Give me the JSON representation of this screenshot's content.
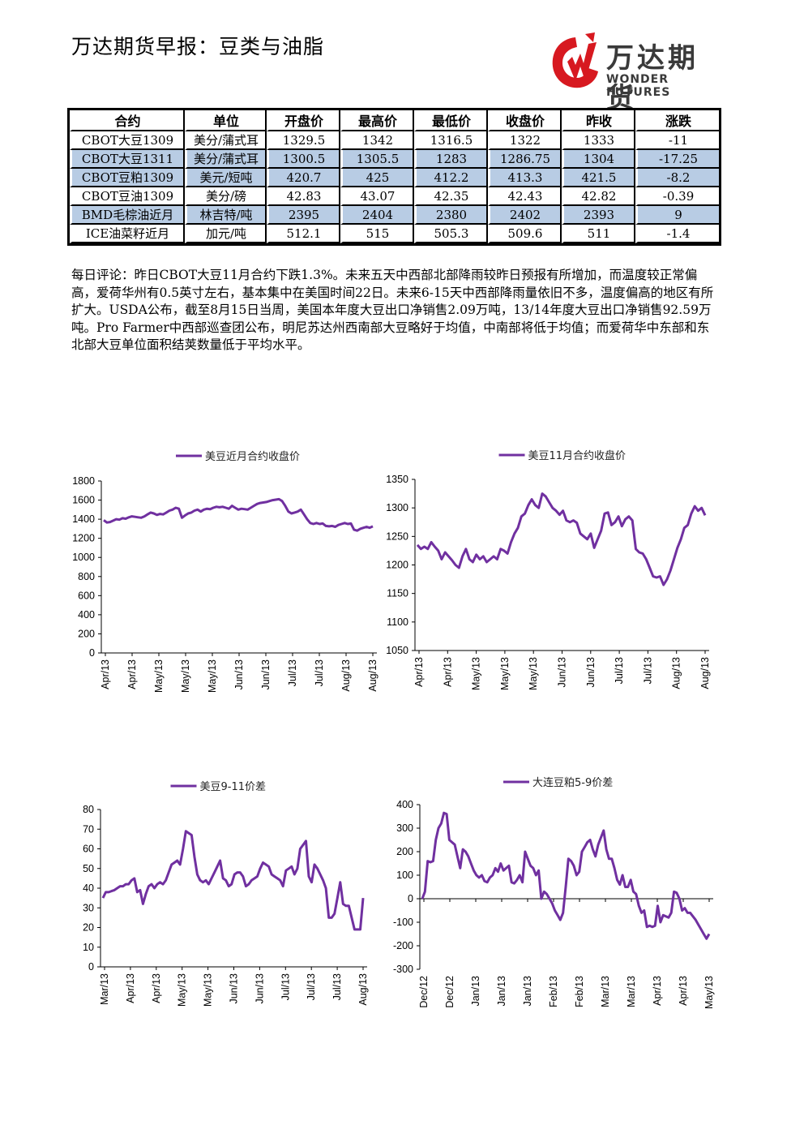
{
  "header": {
    "title": "万达期货早报：豆类与油脂",
    "logo_cn": "万达期货",
    "logo_en": "WONDER FUTURES",
    "logo_red": "#d71920",
    "logo_gray": "#3a3a3a"
  },
  "table": {
    "headers": [
      "合约",
      "单位",
      "开盘价",
      "最高价",
      "最低价",
      "收盘价",
      "昨收",
      "涨跌"
    ],
    "shade_color": "#b8cce4",
    "rows": [
      {
        "cells": [
          "CBOT大豆1309",
          "美分/蒲式耳",
          "1329.5",
          "1342",
          "1316.5",
          "1322",
          "1333",
          "-11"
        ],
        "shaded": false
      },
      {
        "cells": [
          "CBOT大豆1311",
          "美分/蒲式耳",
          "1300.5",
          "1305.5",
          "1283",
          "1286.75",
          "1304",
          "-17.25"
        ],
        "shaded": true
      },
      {
        "cells": [
          "CBOT豆粕1309",
          "美元/短吨",
          "420.7",
          "425",
          "412.2",
          "413.3",
          "421.5",
          "-8.2"
        ],
        "shaded": true
      },
      {
        "cells": [
          "CBOT豆油1309",
          "美分/磅",
          "42.83",
          "43.07",
          "42.35",
          "42.43",
          "42.82",
          "-0.39"
        ],
        "shaded": false
      },
      {
        "cells": [
          "BMD毛棕油近月",
          "林吉特/吨",
          "2395",
          "2404",
          "2380",
          "2402",
          "2393",
          "9"
        ],
        "shaded": true
      },
      {
        "cells": [
          "ICE油菜籽近月",
          "加元/吨",
          "512.1",
          "515",
          "505.3",
          "509.6",
          "511",
          "-1.4"
        ],
        "shaded": false
      }
    ]
  },
  "comment": "每日评论：昨日CBOT大豆11月合约下跌1.3%。未来五天中西部北部降雨较昨日预报有所增加，而温度较正常偏高，爱荷华州有0.5英寸左右，基本集中在美国时间22日。未来6-15天中西部降雨量依旧不多，温度偏高的地区有所扩大。USDA公布，截至8月15日当周，美国本年度大豆出口净销售2.09万吨，13/14年度大豆出口净销售92.59万吨。Pro Farmer中西部巡查团公布，明尼苏达州西南部大豆略好于均值，中南部将低于均值；而爱荷华中东部和东北部大豆单位面积结荚数量低于平均水平。",
  "chart_data": [
    {
      "type": "line",
      "title": "",
      "series_name": "美豆近月合约收盘价",
      "color": "#7030a0",
      "ylim": [
        0,
        1800
      ],
      "yticks": [
        "0",
        "200",
        "400",
        "600",
        "800",
        "1000",
        "1200",
        "1400",
        "1600",
        "1800"
      ],
      "xticks": [
        "Apr/13",
        "Apr/13",
        "May/13",
        "May/13",
        "May/13",
        "Jun/13",
        "Jun/13",
        "Jul/13",
        "Jul/13",
        "Aug/13",
        "Aug/13"
      ],
      "values": [
        1390,
        1365,
        1370,
        1385,
        1400,
        1395,
        1410,
        1405,
        1420,
        1430,
        1425,
        1420,
        1415,
        1430,
        1450,
        1470,
        1460,
        1445,
        1455,
        1450,
        1470,
        1490,
        1500,
        1520,
        1510,
        1415,
        1440,
        1460,
        1470,
        1490,
        1500,
        1480,
        1500,
        1510,
        1505,
        1520,
        1530,
        1525,
        1530,
        1520,
        1510,
        1540,
        1520,
        1500,
        1510,
        1505,
        1500,
        1520,
        1540,
        1560,
        1570,
        1575,
        1580,
        1590,
        1600,
        1605,
        1610,
        1590,
        1540,
        1480,
        1460,
        1470,
        1480,
        1500,
        1450,
        1400,
        1360,
        1350,
        1360,
        1350,
        1355,
        1330,
        1325,
        1330,
        1320,
        1340,
        1350,
        1360,
        1350,
        1355,
        1290,
        1280,
        1300,
        1310,
        1320,
        1310,
        1325
      ]
    },
    {
      "type": "line",
      "title": "",
      "series_name": "美豆11月合约收盘价",
      "color": "#7030a0",
      "ylim": [
        1050,
        1350
      ],
      "yticks": [
        "1050",
        "1100",
        "1150",
        "1200",
        "1250",
        "1300",
        "1350"
      ],
      "xticks": [
        "Apr/13",
        "Apr/13",
        "May/13",
        "May/13",
        "May/13",
        "Jun/13",
        "Jun/13",
        "Jul/13",
        "Jul/13",
        "Aug/13",
        "Aug/13"
      ],
      "values": [
        1235,
        1228,
        1232,
        1228,
        1240,
        1232,
        1225,
        1210,
        1222,
        1215,
        1208,
        1200,
        1195,
        1215,
        1228,
        1210,
        1205,
        1218,
        1210,
        1215,
        1205,
        1210,
        1215,
        1210,
        1228,
        1225,
        1220,
        1240,
        1255,
        1265,
        1285,
        1290,
        1305,
        1315,
        1305,
        1300,
        1325,
        1320,
        1310,
        1300,
        1295,
        1288,
        1295,
        1278,
        1275,
        1278,
        1274,
        1255,
        1250,
        1245,
        1255,
        1230,
        1245,
        1260,
        1290,
        1292,
        1270,
        1275,
        1285,
        1268,
        1280,
        1285,
        1278,
        1228,
        1222,
        1220,
        1210,
        1195,
        1180,
        1178,
        1180,
        1165,
        1175,
        1190,
        1210,
        1230,
        1245,
        1265,
        1270,
        1290,
        1303,
        1295,
        1300,
        1287
      ]
    },
    {
      "type": "line",
      "title": "",
      "series_name": "美豆9-11价差",
      "color": "#7030a0",
      "ylim": [
        0,
        80
      ],
      "yticks": [
        "0",
        "10",
        "20",
        "30",
        "40",
        "50",
        "60",
        "70",
        "80"
      ],
      "xticks": [
        "Mar/13",
        "Apr/13",
        "Apr/13",
        "May/13",
        "May/13",
        "Jun/13",
        "Jun/13",
        "Jul/13",
        "Jul/13",
        "Jul/13",
        "Aug/13"
      ],
      "values": [
        35,
        38,
        38,
        38.5,
        39,
        40,
        41,
        41,
        42,
        42,
        44,
        45,
        38,
        39,
        32,
        37,
        41,
        42,
        40,
        42,
        43,
        42,
        44,
        48,
        52,
        53,
        54,
        52,
        60,
        69,
        68,
        67,
        56,
        47,
        44,
        43,
        44,
        42,
        45,
        48,
        51,
        54,
        45,
        44,
        41,
        42,
        47,
        48,
        48,
        46,
        41,
        42,
        44,
        45,
        46,
        50,
        53,
        52,
        51,
        47,
        46,
        45,
        44,
        41,
        49,
        50,
        51,
        47,
        50,
        60,
        62,
        64,
        46,
        43,
        52,
        50,
        47,
        44,
        40,
        25,
        25,
        27,
        35,
        43,
        32,
        31,
        31,
        25,
        19,
        19,
        19,
        35
      ]
    },
    {
      "type": "line",
      "title": "",
      "series_name": "大连豆粕5-9价差",
      "color": "#7030a0",
      "ylim": [
        -300,
        400
      ],
      "yticks": [
        "-300",
        "-200",
        "-100",
        "0",
        "100",
        "200",
        "300",
        "400"
      ],
      "xticks": [
        "Dec/12",
        "Dec/12",
        "Jan/13",
        "Jan/13",
        "Jan/13",
        "Feb/13",
        "Feb/13",
        "Mar/13",
        "Mar/13",
        "Apr/13",
        "Apr/13",
        "May/13"
      ],
      "values": [
        0,
        30,
        160,
        155,
        160,
        250,
        300,
        320,
        365,
        360,
        250,
        240,
        230,
        180,
        130,
        210,
        200,
        180,
        150,
        120,
        100,
        90,
        100,
        75,
        70,
        90,
        100,
        130,
        115,
        150,
        120,
        130,
        140,
        70,
        65,
        80,
        100,
        70,
        200,
        170,
        140,
        130,
        100,
        120,
        0,
        30,
        20,
        0,
        -20,
        -50,
        -70,
        -90,
        -60,
        50,
        170,
        160,
        140,
        100,
        115,
        200,
        220,
        240,
        250,
        210,
        180,
        230,
        260,
        290,
        210,
        170,
        170,
        130,
        80,
        60,
        100,
        50,
        50,
        80,
        30,
        20,
        -30,
        -60,
        -50,
        -120,
        -115,
        -120,
        -115,
        -30,
        -100,
        -70,
        -75,
        -80,
        -60,
        30,
        25,
        0,
        -50,
        -40,
        -60,
        -60,
        -75,
        -90,
        -110,
        -130,
        -150,
        -170,
        -150
      ]
    }
  ]
}
